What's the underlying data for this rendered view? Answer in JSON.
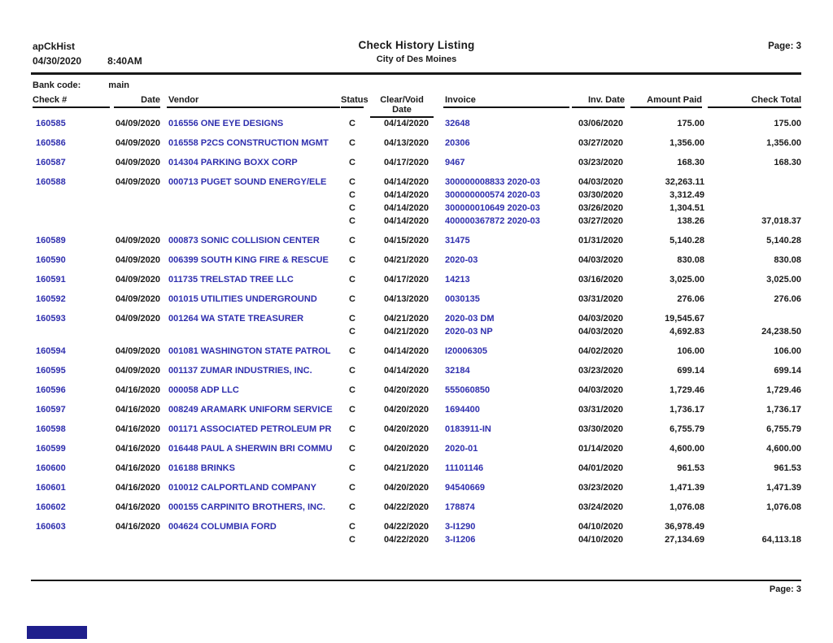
{
  "report": {
    "app_id": "apCkHist",
    "run_date": "04/30/2020",
    "run_time": "8:40AM",
    "title": "Check History Listing",
    "subtitle": "City of Des Moines",
    "page_label": "Page: 3",
    "footer_page_label": "Page: 3",
    "bank_code_label": "Bank code:",
    "bank_code_value": "main"
  },
  "colors": {
    "link_blue": "#2f2fae",
    "text_black": "#1a1a1a",
    "rule_black": "#181818",
    "bottom_left_marker": "#1f1f8c"
  },
  "table": {
    "headers": [
      "Check #",
      "Date",
      "Vendor",
      "Status",
      "Clear/Void Date",
      "Invoice",
      "Inv. Date",
      "Amount Paid",
      "Check Total"
    ],
    "rows": [
      {
        "check_no": "160585",
        "date": "04/09/2020",
        "vendor": "016556 ONE EYE DESIGNS",
        "check_total": "175.00",
        "lines": [
          {
            "status": "C",
            "clear_date": "04/14/2020",
            "invoice": "32648",
            "inv_date": "03/06/2020",
            "amount": "175.00"
          }
        ]
      },
      {
        "check_no": "160586",
        "date": "04/09/2020",
        "vendor": "016558 P2CS CONSTRUCTION MGMT",
        "check_total": "1,356.00",
        "lines": [
          {
            "status": "C",
            "clear_date": "04/13/2020",
            "invoice": "20306",
            "inv_date": "03/27/2020",
            "amount": "1,356.00"
          }
        ]
      },
      {
        "check_no": "160587",
        "date": "04/09/2020",
        "vendor": "014304 PARKING BOXX CORP",
        "check_total": "168.30",
        "lines": [
          {
            "status": "C",
            "clear_date": "04/17/2020",
            "invoice": "9467",
            "inv_date": "03/23/2020",
            "amount": "168.30"
          }
        ]
      },
      {
        "check_no": "160588",
        "date": "04/09/2020",
        "vendor": "000713 PUGET SOUND ENERGY/ELE",
        "check_total": "37,018.37",
        "lines": [
          {
            "status": "C",
            "clear_date": "04/14/2020",
            "invoice": "300000008833 2020-03",
            "inv_date": "04/03/2020",
            "amount": "32,263.11"
          },
          {
            "status": "C",
            "clear_date": "04/14/2020",
            "invoice": "300000000574 2020-03",
            "inv_date": "03/30/2020",
            "amount": "3,312.49"
          },
          {
            "status": "C",
            "clear_date": "04/14/2020",
            "invoice": "300000010649 2020-03",
            "inv_date": "03/26/2020",
            "amount": "1,304.51"
          },
          {
            "status": "C",
            "clear_date": "04/14/2020",
            "invoice": "400000367872 2020-03",
            "inv_date": "03/27/2020",
            "amount": "138.26"
          }
        ]
      },
      {
        "check_no": "160589",
        "date": "04/09/2020",
        "vendor": "000873 SONIC COLLISION CENTER",
        "check_total": "5,140.28",
        "lines": [
          {
            "status": "C",
            "clear_date": "04/15/2020",
            "invoice": "31475",
            "inv_date": "01/31/2020",
            "amount": "5,140.28"
          }
        ]
      },
      {
        "check_no": "160590",
        "date": "04/09/2020",
        "vendor": "006399 SOUTH KING FIRE & RESCUE",
        "check_total": "830.08",
        "lines": [
          {
            "status": "C",
            "clear_date": "04/21/2020",
            "invoice": "2020-03",
            "inv_date": "04/03/2020",
            "amount": "830.08"
          }
        ]
      },
      {
        "check_no": "160591",
        "date": "04/09/2020",
        "vendor": "011735 TRELSTAD TREE LLC",
        "check_total": "3,025.00",
        "lines": [
          {
            "status": "C",
            "clear_date": "04/17/2020",
            "invoice": "14213",
            "inv_date": "03/16/2020",
            "amount": "3,025.00"
          }
        ]
      },
      {
        "check_no": "160592",
        "date": "04/09/2020",
        "vendor": "001015 UTILITIES UNDERGROUND",
        "check_total": "276.06",
        "lines": [
          {
            "status": "C",
            "clear_date": "04/13/2020",
            "invoice": "0030135",
            "inv_date": "03/31/2020",
            "amount": "276.06"
          }
        ]
      },
      {
        "check_no": "160593",
        "date": "04/09/2020",
        "vendor": "001264 WA STATE TREASURER",
        "check_total": "24,238.50",
        "lines": [
          {
            "status": "C",
            "clear_date": "04/21/2020",
            "invoice": "2020-03 DM",
            "inv_date": "04/03/2020",
            "amount": "19,545.67"
          },
          {
            "status": "C",
            "clear_date": "04/21/2020",
            "invoice": "2020-03 NP",
            "inv_date": "04/03/2020",
            "amount": "4,692.83"
          }
        ]
      },
      {
        "check_no": "160594",
        "date": "04/09/2020",
        "vendor": "001081 WASHINGTON STATE PATROL",
        "check_total": "106.00",
        "lines": [
          {
            "status": "C",
            "clear_date": "04/14/2020",
            "invoice": "I20006305",
            "inv_date": "04/02/2020",
            "amount": "106.00"
          }
        ]
      },
      {
        "check_no": "160595",
        "date": "04/09/2020",
        "vendor": "001137 ZUMAR INDUSTRIES, INC.",
        "check_total": "699.14",
        "lines": [
          {
            "status": "C",
            "clear_date": "04/14/2020",
            "invoice": "32184",
            "inv_date": "03/23/2020",
            "amount": "699.14"
          }
        ]
      },
      {
        "check_no": "160596",
        "date": "04/16/2020",
        "vendor": "000058 ADP LLC",
        "check_total": "1,729.46",
        "lines": [
          {
            "status": "C",
            "clear_date": "04/20/2020",
            "invoice": "555060850",
            "inv_date": "04/03/2020",
            "amount": "1,729.46"
          }
        ]
      },
      {
        "check_no": "160597",
        "date": "04/16/2020",
        "vendor": "008249 ARAMARK UNIFORM SERVICE",
        "check_total": "1,736.17",
        "lines": [
          {
            "status": "C",
            "clear_date": "04/20/2020",
            "invoice": "1694400",
            "inv_date": "03/31/2020",
            "amount": "1,736.17"
          }
        ]
      },
      {
        "check_no": "160598",
        "date": "04/16/2020",
        "vendor": "001171 ASSOCIATED PETROLEUM PR",
        "check_total": "6,755.79",
        "lines": [
          {
            "status": "C",
            "clear_date": "04/20/2020",
            "invoice": "0183911-IN",
            "inv_date": "03/30/2020",
            "amount": "6,755.79"
          }
        ]
      },
      {
        "check_no": "160599",
        "date": "04/16/2020",
        "vendor": "016448 PAUL A SHERWIN BRI COMMU",
        "check_total": "4,600.00",
        "lines": [
          {
            "status": "C",
            "clear_date": "04/20/2020",
            "invoice": "2020-01",
            "inv_date": "01/14/2020",
            "amount": "4,600.00"
          }
        ]
      },
      {
        "check_no": "160600",
        "date": "04/16/2020",
        "vendor": "016188 BRINKS",
        "check_total": "961.53",
        "lines": [
          {
            "status": "C",
            "clear_date": "04/21/2020",
            "invoice": "11101146",
            "inv_date": "04/01/2020",
            "amount": "961.53"
          }
        ]
      },
      {
        "check_no": "160601",
        "date": "04/16/2020",
        "vendor": "010012 CALPORTLAND COMPANY",
        "check_total": "1,471.39",
        "lines": [
          {
            "status": "C",
            "clear_date": "04/20/2020",
            "invoice": "94540669",
            "inv_date": "03/23/2020",
            "amount": "1,471.39"
          }
        ]
      },
      {
        "check_no": "160602",
        "date": "04/16/2020",
        "vendor": "000155 CARPINITO BROTHERS, INC.",
        "check_total": "1,076.08",
        "lines": [
          {
            "status": "C",
            "clear_date": "04/22/2020",
            "invoice": "178874",
            "inv_date": "03/24/2020",
            "amount": "1,076.08"
          }
        ]
      },
      {
        "check_no": "160603",
        "date": "04/16/2020",
        "vendor": "004624 COLUMBIA FORD",
        "check_total": "64,113.18",
        "lines": [
          {
            "status": "C",
            "clear_date": "04/22/2020",
            "invoice": "3-I1290",
            "inv_date": "04/10/2020",
            "amount": "36,978.49"
          },
          {
            "status": "C",
            "clear_date": "04/22/2020",
            "invoice": "3-I1206",
            "inv_date": "04/10/2020",
            "amount": "27,134.69"
          }
        ]
      }
    ]
  }
}
